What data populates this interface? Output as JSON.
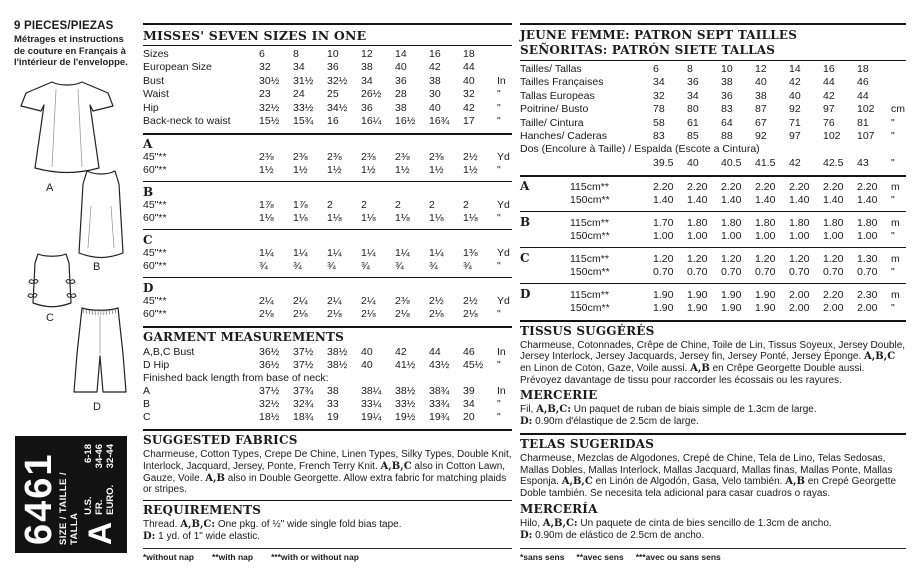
{
  "left": {
    "pieces_count": "9",
    "pieces_label": "PIECES/PIEZAS",
    "note_fr": "Métrages et instructions de couture en Français à l'intérieur de l'enveloppe.",
    "views": [
      "A",
      "B",
      "C",
      "D"
    ],
    "pattern_box": {
      "number": "6461",
      "size_title": "SIZE / TAILLE / TALLA",
      "view": "A",
      "sizes": [
        {
          "label": "U.S.",
          "value": "6-18"
        },
        {
          "label": "FR.",
          "value": "34-46"
        },
        {
          "label": "EURO.",
          "value": "32-44"
        }
      ]
    }
  },
  "middle": {
    "title": "MISSES' SEVEN SIZES IN ONE",
    "size_table": [
      [
        "Sizes",
        "6",
        "8",
        "10",
        "12",
        "14",
        "16",
        "18",
        ""
      ],
      [
        "European Size",
        "32",
        "34",
        "36",
        "38",
        "40",
        "42",
        "44",
        ""
      ],
      [
        "Bust",
        "30½",
        "31½",
        "32½",
        "34",
        "36",
        "38",
        "40",
        "In"
      ],
      [
        "Waist",
        "23",
        "24",
        "25",
        "26½",
        "28",
        "30",
        "32",
        "\""
      ],
      [
        "Hip",
        "32½",
        "33½",
        "34½",
        "36",
        "38",
        "40",
        "42",
        "\""
      ],
      [
        "Back-neck to waist",
        "15½",
        "15¾",
        "16",
        "16¼",
        "16½",
        "16¾",
        "17",
        "\""
      ]
    ],
    "yardage": {
      "A": {
        "letter": "A",
        "rows": [
          [
            "45\"**",
            "2⅜",
            "2⅜",
            "2⅜",
            "2⅜",
            "2⅜",
            "2⅜",
            "2½",
            "Yd"
          ],
          [
            "60\"**",
            "1½",
            "1½",
            "1½",
            "1½",
            "1½",
            "1½",
            "1½",
            "\""
          ]
        ]
      },
      "B": {
        "letter": "B",
        "rows": [
          [
            "45\"**",
            "1⅞",
            "1⅞",
            "2",
            "2",
            "2",
            "2",
            "2",
            "Yd"
          ],
          [
            "60\"**",
            "1⅛",
            "1⅛",
            "1⅛",
            "1⅛",
            "1⅛",
            "1⅛",
            "1⅛",
            "\""
          ]
        ]
      },
      "C": {
        "letter": "C",
        "rows": [
          [
            "45\"**",
            "1¼",
            "1¼",
            "1¼",
            "1¼",
            "1¼",
            "1¼",
            "1⅜",
            "Yd"
          ],
          [
            "60\"**",
            "¾",
            "¾",
            "¾",
            "¾",
            "¾",
            "¾",
            "¾",
            "\""
          ]
        ]
      },
      "D": {
        "letter": "D",
        "rows": [
          [
            "45\"**",
            "2¼",
            "2¼",
            "2¼",
            "2¼",
            "2⅜",
            "2½",
            "2½",
            "Yd"
          ],
          [
            "60\"**",
            "2⅛",
            "2⅛",
            "2⅛",
            "2⅛",
            "2⅛",
            "2⅛",
            "2⅛",
            "\""
          ]
        ]
      }
    },
    "garment_measurements": {
      "title": "GARMENT MEASUREMENTS",
      "rows_top": [
        [
          "A,B,C Bust",
          "36½",
          "37½",
          "38½",
          "40",
          "42",
          "44",
          "46",
          "In"
        ],
        [
          "D Hip",
          "36½",
          "37½",
          "38½",
          "40",
          "41½",
          "43½",
          "45½",
          "\""
        ]
      ],
      "note": "Finished back length from base of neck:",
      "rows_bottom": [
        [
          "A",
          "37½",
          "37¾",
          "38",
          "38¼",
          "38½",
          "38¾",
          "39",
          "In"
        ],
        [
          "B",
          "32½",
          "32¾",
          "33",
          "33¼",
          "33½",
          "33¾",
          "34",
          "\""
        ],
        [
          "C",
          "18½",
          "18¾",
          "19",
          "19¼",
          "19½",
          "19¾",
          "20",
          "\""
        ]
      ]
    },
    "suggested_fabrics": {
      "title": "SUGGESTED FABRICS",
      "segments": [
        {
          "t": "Charmeuse, Cotton Types, Crepe De Chine, Linen Types, Silky Types, Double Knit, Interlock, Jacquard, Jersey, Ponte, French Terry Knit. "
        },
        {
          "t": "A,B,C",
          "b": true
        },
        {
          "t": " also in Cotton Lawn, Gauze, Voile. "
        },
        {
          "t": "A,B",
          "b": true
        },
        {
          "t": " also in Double Georgette. Allow extra fabric for matching plaids or stripes."
        }
      ]
    },
    "requirements": {
      "title": "REQUIREMENTS",
      "line1": [
        {
          "t": "Thread. "
        },
        {
          "t": "A,B,C:",
          "b": true
        },
        {
          "t": " One pkg. of ½\" wide single fold bias tape."
        }
      ],
      "line2": [
        {
          "t": "D:",
          "b": true
        },
        {
          "t": " 1 yd. of 1\" wide elastic."
        }
      ]
    },
    "footnotes": [
      "*without nap",
      "**with nap",
      "***with or without nap"
    ]
  },
  "right": {
    "title_fr": "JEUNE FEMME: PATRON SEPT TAILLES",
    "title_es": "SEÑORITAS: PATRÓN SIETE TALLAS",
    "size_table": [
      [
        "Tailles/ Tallas",
        "6",
        "8",
        "10",
        "12",
        "14",
        "16",
        "18",
        ""
      ],
      [
        "Tailles Françaises",
        "34",
        "36",
        "38",
        "40",
        "42",
        "44",
        "46",
        ""
      ],
      [
        "Tallas Europeas",
        "32",
        "34",
        "36",
        "38",
        "40",
        "42",
        "44",
        ""
      ],
      [
        "Poitrine/ Busto",
        "78",
        "80",
        "83",
        "87",
        "92",
        "97",
        "102",
        "cm"
      ],
      [
        "Taille/ Cintura",
        "58",
        "61",
        "64",
        "67",
        "71",
        "76",
        "81",
        "\""
      ],
      [
        "Hanches/ Caderas",
        "83",
        "85",
        "88",
        "92",
        "97",
        "102",
        "107",
        "\""
      ]
    ],
    "dos_label": "Dos (Encolure à Taille) / Espalda (Escote a Cintura)",
    "dos_row": [
      [
        "",
        "39.5",
        "40",
        "40.5",
        "41.5",
        "42",
        "42.5",
        "43",
        "\""
      ]
    ],
    "metrage": {
      "A": {
        "rows": [
          [
            "A",
            "115cm**",
            "2.20",
            "2.20",
            "2.20",
            "2.20",
            "2.20",
            "2.20",
            "2.20",
            "m"
          ],
          [
            "",
            "150cm**",
            "1.40",
            "1.40",
            "1.40",
            "1.40",
            "1.40",
            "1.40",
            "1.40",
            "\""
          ]
        ]
      },
      "B": {
        "rows": [
          [
            "B",
            "115cm**",
            "1.70",
            "1.80",
            "1.80",
            "1.80",
            "1.80",
            "1.80",
            "1.80",
            "m"
          ],
          [
            "",
            "150cm**",
            "1.00",
            "1.00",
            "1.00",
            "1.00",
            "1.00",
            "1.00",
            "1.00",
            "\""
          ]
        ]
      },
      "C": {
        "rows": [
          [
            "C",
            "115cm**",
            "1.20",
            "1.20",
            "1.20",
            "1.20",
            "1.20",
            "1.20",
            "1.30",
            "m"
          ],
          [
            "",
            "150cm**",
            "0.70",
            "0.70",
            "0.70",
            "0.70",
            "0.70",
            "0.70",
            "0.70",
            "\""
          ]
        ]
      },
      "D": {
        "rows": [
          [
            "D",
            "115cm**",
            "1.90",
            "1.90",
            "1.90",
            "1.90",
            "2.00",
            "2.20",
            "2.30",
            "m"
          ],
          [
            "",
            "150cm**",
            "1.90",
            "1.90",
            "1.90",
            "1.90",
            "2.00",
            "2.00",
            "2.00",
            "\""
          ]
        ]
      }
    },
    "tissus": {
      "title": "TISSUS SUGGÉRÉS",
      "segments": [
        {
          "t": "Charmeuse, Cotonnades, Crêpe de Chine, Toile de Lin, Tissus Soyeux, Jersey Double, Jersey Interlock, Jersey Jacquards, Jersey fin, Jersey Ponté, Jersey Éponge. "
        },
        {
          "t": "A,B,C",
          "b": true
        },
        {
          "t": " en Linon de Coton, Gaze, Voile aussi. "
        },
        {
          "t": "A,B",
          "b": true
        },
        {
          "t": " en Crêpe Georgette Double aussi. Prévoyez davantage de tissu pour raccorder les écossais ou les rayures."
        }
      ]
    },
    "mercerie": {
      "title": "MERCERIE",
      "line1": [
        {
          "t": "Fil, "
        },
        {
          "t": "A,B,C:",
          "b": true
        },
        {
          "t": " Un paquet de ruban de biais simple de 1.3cm de large."
        }
      ],
      "line2": [
        {
          "t": "D:",
          "b": true
        },
        {
          "t": " 0.90m d'élastique de 2.5cm de large."
        }
      ]
    },
    "telas": {
      "title": "TELAS SUGERIDAS",
      "segments": [
        {
          "t": "Charmeuse, Mezclas de Algodones, Crepé de Chine, Tela de Lino, Telas Sedosas, Mallas Dobles, Mallas Interlock, Mallas Jacquard, Mallas finas, Mallas Ponte, Mallas Esponja. "
        },
        {
          "t": "A,B,C",
          "b": true
        },
        {
          "t": " en Linón de Algodón, Gasa, Velo también. "
        },
        {
          "t": "A,B",
          "b": true
        },
        {
          "t": " en Crepé Georgette Doble también. Se necesita tela adicional para casar cuadros o rayas."
        }
      ]
    },
    "merceria": {
      "title": "MERCERÍA",
      "line1": [
        {
          "t": "Hilo, "
        },
        {
          "t": "A,B,C:",
          "b": true
        },
        {
          "t": " Un paquete de cinta de bies sencillo de 1.3cm de ancho."
        }
      ],
      "line2": [
        {
          "t": "D:",
          "b": true
        },
        {
          "t": " 0.90m de elástico de 2.5cm de ancho."
        }
      ]
    },
    "footnotes": [
      "*sans sens",
      "**avec sens",
      "***avec ou sans sens"
    ]
  }
}
